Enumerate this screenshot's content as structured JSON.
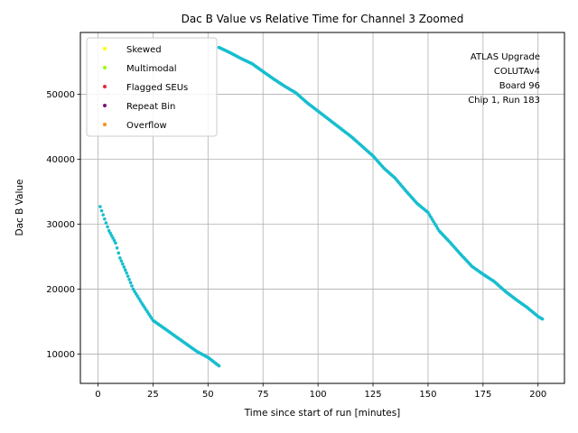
{
  "chart_data": {
    "type": "scatter",
    "title": "Dac B Value vs Relative Time for Channel 3 Zoomed",
    "xlabel": "Time since start of run [minutes]",
    "ylabel": "Dac B Value",
    "xlim": [
      -8,
      212
    ],
    "ylim": [
      5500,
      59500
    ],
    "xticks": [
      0,
      25,
      50,
      75,
      100,
      125,
      150,
      175,
      200
    ],
    "yticks": [
      10000,
      20000,
      30000,
      40000,
      50000
    ],
    "grid": true,
    "legend_position": "top-left",
    "legend": [
      {
        "label": "Skewed",
        "color": "#ffff00"
      },
      {
        "label": "Multimodal",
        "color": "#99ff00"
      },
      {
        "label": "Flagged SEUs",
        "color": "#e8233a"
      },
      {
        "label": "Repeat Bin",
        "color": "#7b0f7b"
      },
      {
        "label": "Overflow",
        "color": "#ff8c1a"
      }
    ],
    "annotation_lines": [
      "ATLAS Upgrade",
      "COLUTAv4",
      "Board 96",
      "Chip 1, Run 183"
    ],
    "series": [
      {
        "color": "#17becf",
        "segments": [
          {
            "x": [
              1,
              3,
              5,
              8,
              10,
              13,
              16,
              20,
              25,
              30,
              35,
              40,
              45,
              50,
              55
            ],
            "y": [
              32700,
              30800,
              29000,
              27100,
              24800,
              22500,
              20000,
              17800,
              15200,
              14000,
              12800,
              11600,
              10400,
              9500,
              8200
            ]
          },
          {
            "x": [
              55,
              60,
              65,
              70,
              75,
              80,
              85,
              90,
              95,
              100,
              105,
              110,
              115,
              120,
              125,
              130,
              135,
              140,
              145,
              150,
              155,
              160,
              165,
              170,
              175,
              180,
              185,
              190,
              195,
              200,
              202
            ],
            "y": [
              57200,
              56400,
              55500,
              54700,
              53500,
              52300,
              51200,
              50200,
              48700,
              47400,
              46100,
              44800,
              43500,
              42000,
              40500,
              38600,
              37100,
              35100,
              33200,
              31800,
              29000,
              27200,
              25300,
              23500,
              22300,
              21200,
              19700,
              18400,
              17200,
              15800,
              15400
            ]
          }
        ]
      }
    ]
  }
}
